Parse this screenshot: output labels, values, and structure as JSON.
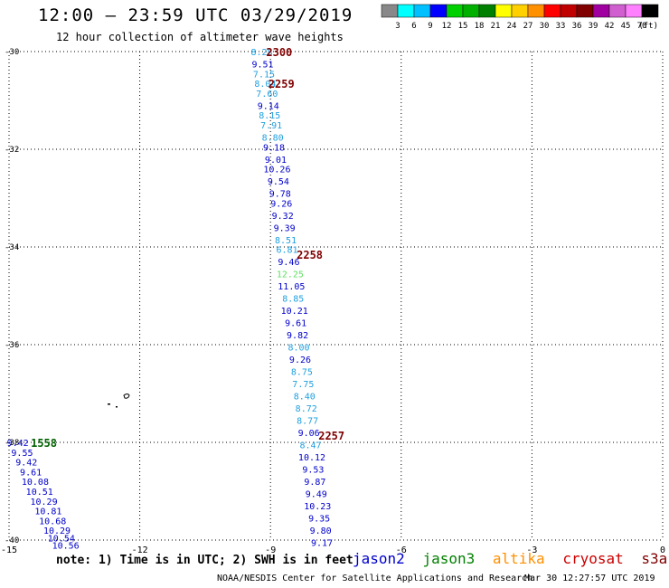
{
  "header": {
    "title": "12:00 – 23:59 UTC 03/29/2019",
    "subtitle": "12 hour collection of altimeter wave heights"
  },
  "legend": {
    "colors": [
      "#888888",
      "#00ffff",
      "#00c0ff",
      "#0000ff",
      "#00d000",
      "#00b000",
      "#008000",
      "#ffff00",
      "#ffd000",
      "#ff9000",
      "#ff0000",
      "#c00000",
      "#800000",
      "#a000a0",
      "#d060d0",
      "#ff80ff",
      "#000000"
    ],
    "labels": [
      "3",
      "6",
      "9",
      "12",
      "15",
      "18",
      "21",
      "24",
      "27",
      "30",
      "33",
      "36",
      "39",
      "42",
      "45",
      "70"
    ],
    "unit": "(ft)"
  },
  "chart_data": {
    "type": "scatter",
    "title": "12:00 – 23:59 UTC 03/29/2019",
    "subtitle": "12 hour collection of altimeter wave heights",
    "xlim": [
      -15,
      0
    ],
    "ylim": [
      -40,
      -30
    ],
    "xticks": [
      "-15",
      "-12",
      "-9",
      "-6",
      "-3",
      "0"
    ],
    "yticks": [
      "-30",
      "-32",
      "-34",
      "-36",
      "-38",
      "-40"
    ],
    "grid": "dotted",
    "series": [
      {
        "name": "jason2",
        "color": "#0000cc",
        "points": [
          {
            "x": -9.2,
            "y": -30.0,
            "label": "8.28",
            "color": "#20a0e0"
          },
          {
            "x": -9.18,
            "y": -30.25,
            "label": "9.51",
            "color": "#0000cc"
          },
          {
            "x": -9.15,
            "y": -30.45,
            "label": "7.15",
            "color": "#20a0e0"
          },
          {
            "x": -9.12,
            "y": -30.65,
            "label": "8.04",
            "color": "#20a0e0"
          },
          {
            "x": -9.08,
            "y": -30.85,
            "label": "7.60",
            "color": "#20a0e0"
          },
          {
            "x": -9.05,
            "y": -31.1,
            "label": "9.14",
            "color": "#0000cc"
          },
          {
            "x": -9.02,
            "y": -31.3,
            "label": "8.15",
            "color": "#20a0e0"
          },
          {
            "x": -8.98,
            "y": -31.5,
            "label": "7.91",
            "color": "#20a0e0"
          },
          {
            "x": -8.95,
            "y": -31.75,
            "label": "8.80",
            "color": "#20a0e0"
          },
          {
            "x": -8.92,
            "y": -31.95,
            "label": "9.18",
            "color": "#0000cc"
          },
          {
            "x": -8.88,
            "y": -32.2,
            "label": "9.01",
            "color": "#0000cc"
          },
          {
            "x": -8.85,
            "y": -32.4,
            "label": "10.26",
            "color": "#0000cc"
          },
          {
            "x": -8.82,
            "y": -32.65,
            "label": "9.54",
            "color": "#0000cc"
          },
          {
            "x": -8.78,
            "y": -32.9,
            "label": "9.78",
            "color": "#0000cc"
          },
          {
            "x": -8.75,
            "y": -33.1,
            "label": "9.26",
            "color": "#0000cc"
          },
          {
            "x": -8.72,
            "y": -33.35,
            "label": "9.32",
            "color": "#0000cc"
          },
          {
            "x": -8.68,
            "y": -33.6,
            "label": "9.39",
            "color": "#0000cc"
          },
          {
            "x": -8.65,
            "y": -33.85,
            "label": "8.51",
            "color": "#20a0e0"
          },
          {
            "x": -8.62,
            "y": -34.05,
            "label": "6.81",
            "color": "#20a0e0"
          },
          {
            "x": -8.58,
            "y": -34.3,
            "label": "9.46",
            "color": "#0000cc"
          },
          {
            "x": -8.55,
            "y": -34.55,
            "label": "12.25",
            "color": "#60e060"
          },
          {
            "x": -8.52,
            "y": -34.8,
            "label": "11.05",
            "color": "#0000cc"
          },
          {
            "x": -8.48,
            "y": -35.05,
            "label": "8.85",
            "color": "#20a0e0"
          },
          {
            "x": -8.45,
            "y": -35.3,
            "label": "10.21",
            "color": "#0000cc"
          },
          {
            "x": -8.42,
            "y": -35.55,
            "label": "9.61",
            "color": "#0000cc"
          },
          {
            "x": -8.38,
            "y": -35.8,
            "label": "9.82",
            "color": "#0000cc"
          },
          {
            "x": -8.35,
            "y": -36.05,
            "label": "8.00",
            "color": "#20a0e0"
          },
          {
            "x": -8.32,
            "y": -36.3,
            "label": "9.26",
            "color": "#0000cc"
          },
          {
            "x": -8.28,
            "y": -36.55,
            "label": "8.75",
            "color": "#20a0e0"
          },
          {
            "x": -8.25,
            "y": -36.8,
            "label": "7.75",
            "color": "#20a0e0"
          },
          {
            "x": -8.22,
            "y": -37.05,
            "label": "8.40",
            "color": "#20a0e0"
          },
          {
            "x": -8.18,
            "y": -37.3,
            "label": "8.72",
            "color": "#20a0e0"
          },
          {
            "x": -8.15,
            "y": -37.55,
            "label": "8.77",
            "color": "#20a0e0"
          },
          {
            "x": -8.12,
            "y": -37.8,
            "label": "9.06",
            "color": "#0000cc"
          },
          {
            "x": -8.08,
            "y": -38.05,
            "label": "8.47",
            "color": "#20a0e0"
          },
          {
            "x": -8.05,
            "y": -38.3,
            "label": "10.12",
            "color": "#0000cc"
          },
          {
            "x": -8.02,
            "y": -38.55,
            "label": "9.53",
            "color": "#0000cc"
          },
          {
            "x": -7.98,
            "y": -38.8,
            "label": "9.87",
            "color": "#0000cc"
          },
          {
            "x": -7.95,
            "y": -39.05,
            "label": "9.49",
            "color": "#0000cc"
          },
          {
            "x": -7.92,
            "y": -39.3,
            "label": "10.23",
            "color": "#0000cc"
          },
          {
            "x": -7.88,
            "y": -39.55,
            "label": "9.35",
            "color": "#0000cc"
          },
          {
            "x": -7.85,
            "y": -39.8,
            "label": "9.80",
            "color": "#0000cc"
          },
          {
            "x": -7.82,
            "y": -40.05,
            "label": "9.17",
            "color": "#0000cc"
          },
          {
            "x": -14.8,
            "y": -38.0,
            "label": "9.42",
            "color": "#0000cc"
          },
          {
            "x": -14.7,
            "y": -38.2,
            "label": "9.55",
            "color": "#0000cc"
          },
          {
            "x": -14.6,
            "y": -38.4,
            "label": "9.42",
            "color": "#0000cc"
          },
          {
            "x": -14.5,
            "y": -38.6,
            "label": "9.61",
            "color": "#0000cc"
          },
          {
            "x": -14.4,
            "y": -38.8,
            "label": "10.08",
            "color": "#0000cc"
          },
          {
            "x": -14.3,
            "y": -39.0,
            "label": "10.51",
            "color": "#0000cc"
          },
          {
            "x": -14.2,
            "y": -39.2,
            "label": "10.29",
            "color": "#0000cc"
          },
          {
            "x": -14.1,
            "y": -39.4,
            "label": "10.81",
            "color": "#0000cc"
          },
          {
            "x": -14.0,
            "y": -39.6,
            "label": "10.68",
            "color": "#0000cc"
          },
          {
            "x": -13.9,
            "y": -39.8,
            "label": "10.29",
            "color": "#0000cc"
          },
          {
            "x": -13.8,
            "y": -39.95,
            "label": "10.54",
            "color": "#0000cc"
          },
          {
            "x": -13.7,
            "y": -40.1,
            "label": "10.56",
            "color": "#0000cc"
          }
        ]
      }
    ],
    "time_labels": [
      {
        "x": -8.8,
        "y": -30.0,
        "label": "2300",
        "color": "#800000"
      },
      {
        "x": -8.75,
        "y": -30.65,
        "label": "2259",
        "color": "#800000"
      },
      {
        "x": -8.1,
        "y": -34.15,
        "label": "2258",
        "color": "#800000"
      },
      {
        "x": -7.6,
        "y": -37.85,
        "label": "2257",
        "color": "#800000"
      },
      {
        "x": -14.2,
        "y": -38.0,
        "label": "1558",
        "color": "#006000"
      }
    ]
  },
  "footer": {
    "note": "note: 1) Time is in UTC; 2) SWH is in feet",
    "satellites": [
      {
        "name": "jason2",
        "color": "#0000cc"
      },
      {
        "name": "jason3",
        "color": "#008000"
      },
      {
        "name": "altika",
        "color": "#ff9000"
      },
      {
        "name": "cryosat",
        "color": "#cc0000"
      },
      {
        "name": "s3a",
        "color": "#800000"
      }
    ],
    "credit": "NOAA/NESDIS Center for Satellite Applications and Research",
    "timestamp": "Mar 30 12:27:57 UTC 2019"
  }
}
